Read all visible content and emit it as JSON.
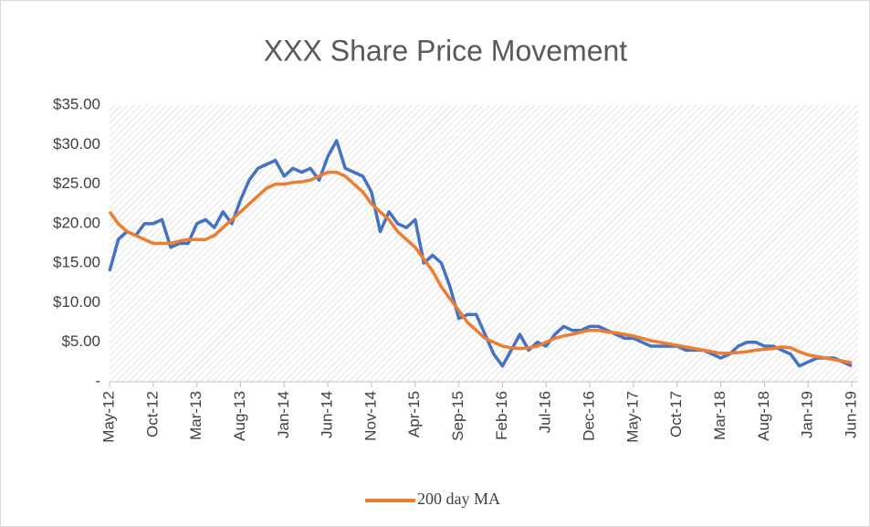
{
  "chart_data": {
    "type": "line",
    "title": "XXX Share Price Movement",
    "x": [
      "2012-05",
      "2012-06",
      "2012-07",
      "2012-08",
      "2012-09",
      "2012-10",
      "2012-11",
      "2012-12",
      "2013-01",
      "2013-02",
      "2013-03",
      "2013-04",
      "2013-05",
      "2013-06",
      "2013-07",
      "2013-08",
      "2013-09",
      "2013-10",
      "2013-11",
      "2013-12",
      "2014-01",
      "2014-02",
      "2014-03",
      "2014-04",
      "2014-05",
      "2014-06",
      "2014-07",
      "2014-08",
      "2014-09",
      "2014-10",
      "2014-11",
      "2014-12",
      "2015-01",
      "2015-02",
      "2015-03",
      "2015-04",
      "2015-05",
      "2015-06",
      "2015-07",
      "2015-08",
      "2015-09",
      "2015-10",
      "2015-11",
      "2015-12",
      "2016-01",
      "2016-02",
      "2016-03",
      "2016-04",
      "2016-05",
      "2016-06",
      "2016-07",
      "2016-08",
      "2016-09",
      "2016-10",
      "2016-11",
      "2016-12",
      "2017-01",
      "2017-02",
      "2017-03",
      "2017-04",
      "2017-05",
      "2017-06",
      "2017-07",
      "2017-08",
      "2017-09",
      "2017-10",
      "2017-11",
      "2017-12",
      "2018-01",
      "2018-02",
      "2018-03",
      "2018-04",
      "2018-05",
      "2018-06",
      "2018-07",
      "2018-08",
      "2018-09",
      "2018-10",
      "2018-11",
      "2018-12",
      "2019-01",
      "2019-02",
      "2019-03",
      "2019-04",
      "2019-05",
      "2019-06"
    ],
    "series": [
      {
        "color": "#4472c4",
        "values": [
          14,
          18,
          19,
          18.5,
          20,
          20,
          20.5,
          17,
          17.5,
          17.5,
          20,
          20.5,
          19.5,
          21.5,
          20,
          23,
          25.5,
          27,
          27.5,
          28,
          26,
          27,
          26.5,
          27,
          25.5,
          28.5,
          30.5,
          27,
          26.5,
          26,
          24,
          19,
          21.5,
          20,
          19.5,
          20.5,
          15,
          16,
          15,
          12,
          8,
          8.5,
          8.5,
          6,
          3.5,
          2,
          4,
          6,
          4,
          5,
          4.5,
          6,
          7,
          6.5,
          6.5,
          7,
          7,
          6.5,
          6,
          5.5,
          5.5,
          5,
          4.5,
          4.5,
          4.5,
          4.5,
          4,
          4,
          4,
          3.5,
          3,
          3.5,
          4.5,
          5,
          5,
          4.5,
          4.5,
          4,
          3.5,
          2,
          2.5,
          3,
          3,
          3,
          2.5,
          2
        ]
      },
      {
        "name": "200 day MA",
        "color": "#ed7d31",
        "values": [
          21.5,
          20,
          19,
          18.5,
          18,
          17.5,
          17.5,
          17.5,
          17.8,
          18,
          18,
          18,
          18.5,
          19.5,
          20.5,
          21.5,
          22.5,
          23.5,
          24.5,
          25,
          25,
          25.2,
          25.3,
          25.5,
          26,
          26.5,
          26.5,
          26,
          25,
          24,
          22.5,
          21.5,
          20.5,
          19,
          18,
          17,
          15.5,
          14,
          12,
          10.5,
          9,
          7.5,
          6.5,
          5.5,
          5,
          4.5,
          4.3,
          4.2,
          4.3,
          4.5,
          5,
          5.5,
          5.8,
          6,
          6.3,
          6.5,
          6.5,
          6.3,
          6.2,
          6,
          5.8,
          5.5,
          5.2,
          5,
          4.8,
          4.6,
          4.4,
          4.2,
          4,
          3.8,
          3.6,
          3.6,
          3.7,
          3.8,
          4,
          4.1,
          4.2,
          4.4,
          4.3,
          3.8,
          3.4,
          3.2,
          3,
          2.8,
          2.6,
          2.4
        ]
      }
    ],
    "xlim": [
      "2012-05",
      "2019-06"
    ],
    "xticks": [
      {
        "value": "2012-05",
        "label": "May-12"
      },
      {
        "value": "2012-10",
        "label": "Oct-12"
      },
      {
        "value": "2013-03",
        "label": "Mar-13"
      },
      {
        "value": "2013-08",
        "label": "Aug-13"
      },
      {
        "value": "2014-01",
        "label": "Jan-14"
      },
      {
        "value": "2014-06",
        "label": "Jun-14"
      },
      {
        "value": "2014-11",
        "label": "Nov-14"
      },
      {
        "value": "2015-04",
        "label": "Apr-15"
      },
      {
        "value": "2015-09",
        "label": "Sep-15"
      },
      {
        "value": "2016-02",
        "label": "Feb-16"
      },
      {
        "value": "2016-07",
        "label": "Jul-16"
      },
      {
        "value": "2016-12",
        "label": "Dec-16"
      },
      {
        "value": "2017-05",
        "label": "May-17"
      },
      {
        "value": "2017-10",
        "label": "Oct-17"
      },
      {
        "value": "2018-03",
        "label": "Mar-18"
      },
      {
        "value": "2018-08",
        "label": "Aug-18"
      },
      {
        "value": "2019-01",
        "label": "Jan-19"
      },
      {
        "value": "2019-06",
        "label": "Jun-19"
      }
    ],
    "ylim": [
      0,
      35
    ],
    "yticks": [
      {
        "value": 0,
        "label": "-"
      },
      {
        "value": 5,
        "label": "$5.00"
      },
      {
        "value": 10,
        "label": "$10.00"
      },
      {
        "value": 15,
        "label": "$15.00"
      },
      {
        "value": 20,
        "label": "$20.00"
      },
      {
        "value": 25,
        "label": "$25.00"
      },
      {
        "value": 30,
        "label": "$30.00"
      },
      {
        "value": 35,
        "label": "$35.00"
      }
    ],
    "legend": "bottom"
  }
}
